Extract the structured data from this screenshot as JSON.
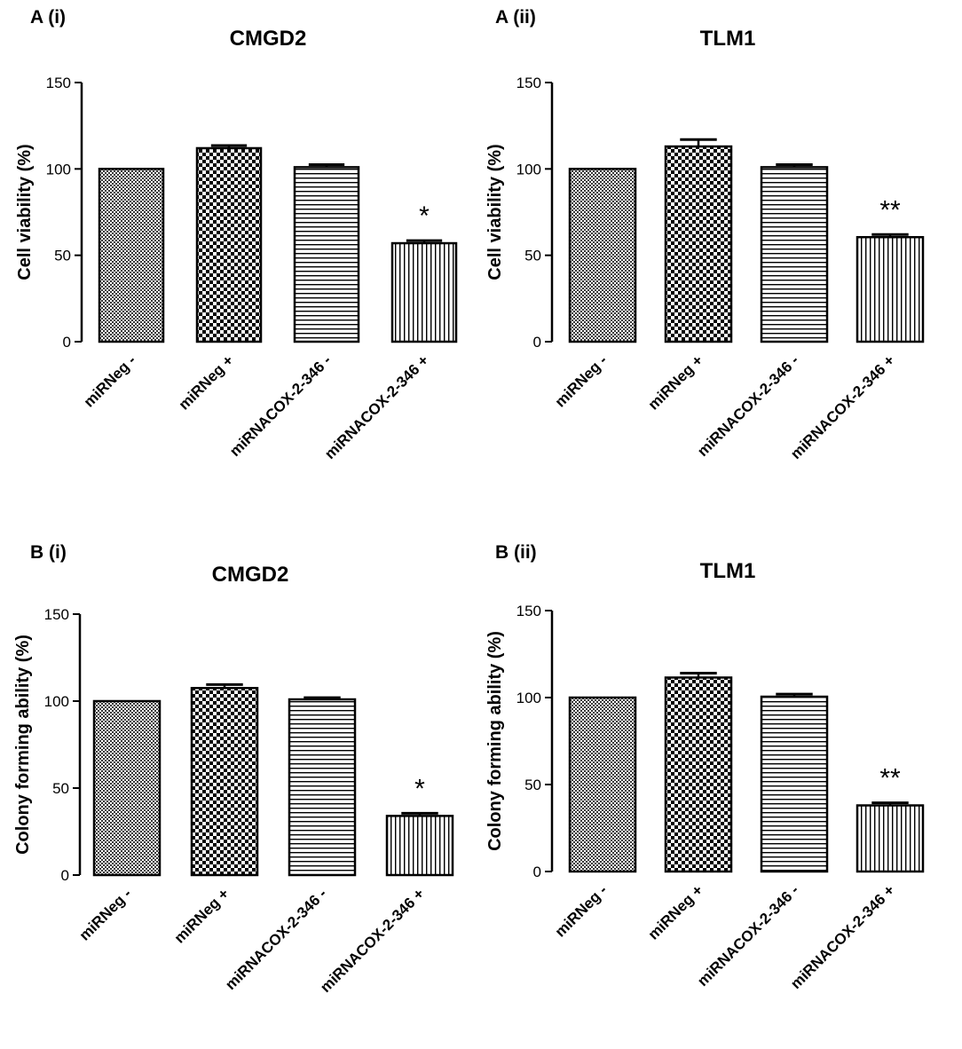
{
  "chart_data": [
    {
      "type": "bar",
      "panel_label": "A (i)",
      "title": "CMGD2",
      "xlabel": "",
      "ylabel": "Cell viability (%)",
      "ylim": [
        0,
        150
      ],
      "yticks": [
        "0",
        "50",
        "100",
        "150"
      ],
      "categories": [
        "miRNeg -",
        "miRNeg +",
        "miRNACOX-2-346 -",
        "miRNACOX-2-346 +"
      ],
      "values": [
        100,
        112,
        101,
        57
      ],
      "errors": [
        0,
        1.5,
        1.5,
        1.5
      ],
      "patterns": [
        "fine-check",
        "coarse-check",
        "horizontal-lines",
        "vertical-lines"
      ],
      "annotations": [
        "",
        "",
        "",
        "*"
      ]
    },
    {
      "type": "bar",
      "panel_label": "A (ii)",
      "title": "TLM1",
      "xlabel": "",
      "ylabel": "Cell viability (%)",
      "ylim": [
        0,
        150
      ],
      "yticks": [
        "0",
        "50",
        "100",
        "150"
      ],
      "categories": [
        "miRNeg -",
        "miRNeg +",
        "miRNACOX-2-346 -",
        "miRNACOX-2-346 +"
      ],
      "values": [
        100,
        113,
        101,
        60.5
      ],
      "errors": [
        0,
        4,
        1.5,
        1.5
      ],
      "patterns": [
        "fine-check",
        "coarse-check",
        "horizontal-lines",
        "vertical-lines"
      ],
      "annotations": [
        "",
        "",
        "",
        "**"
      ]
    },
    {
      "type": "bar",
      "panel_label": "B (i)",
      "title": "CMGD2",
      "xlabel": "",
      "ylabel": "Colony forming ability (%)",
      "ylim": [
        0,
        150
      ],
      "yticks": [
        "0",
        "50",
        "100",
        "150"
      ],
      "categories": [
        "miRNeg -",
        "miRNeg +",
        "miRNACOX-2-346 -",
        "miRNACOX-2-346 +"
      ],
      "values": [
        100,
        107.5,
        101,
        34
      ],
      "errors": [
        0,
        2,
        1,
        1.5
      ],
      "patterns": [
        "fine-check",
        "coarse-check",
        "horizontal-lines",
        "vertical-lines"
      ],
      "annotations": [
        "",
        "",
        "",
        "*"
      ]
    },
    {
      "type": "bar",
      "panel_label": "B (ii)",
      "title": "TLM1",
      "xlabel": "",
      "ylabel": "Colony forming ability (%)",
      "ylim": [
        0,
        150
      ],
      "yticks": [
        "0",
        "50",
        "100",
        "150"
      ],
      "categories": [
        "miRNeg -",
        "miRNeg +",
        "miRNACOX-2-346 -",
        "miRNACOX-2-346 +"
      ],
      "values": [
        100,
        111.5,
        100.5,
        38
      ],
      "errors": [
        0,
        2.5,
        1.5,
        1.5
      ],
      "patterns": [
        "fine-check",
        "coarse-check",
        "horizontal-lines",
        "vertical-lines"
      ],
      "annotations": [
        "",
        "",
        "",
        "**"
      ]
    }
  ]
}
